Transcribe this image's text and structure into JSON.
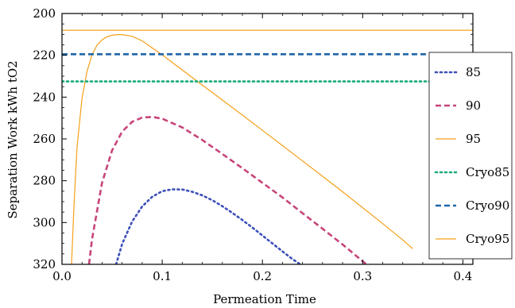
{
  "chart_data": {
    "type": "line",
    "xlabel": "Permeation Time",
    "ylabel": "Separation Work kWh tO2",
    "xlim": [
      0.0,
      0.41
    ],
    "ylim": [
      320,
      200
    ],
    "y_inverted": true,
    "grid": false,
    "legend_position": "right",
    "x_ticks": [
      "0.0",
      "0.1",
      "0.2",
      "0.3",
      "0.4"
    ],
    "y_ticks": [
      "200",
      "220",
      "240",
      "260",
      "280",
      "300",
      "320"
    ],
    "series": [
      {
        "name": "85",
        "color": "#3b4fb8",
        "style": "dotted",
        "x": [
          0.054,
          0.06,
          0.07,
          0.08,
          0.09,
          0.1,
          0.11,
          0.12,
          0.13,
          0.14,
          0.15,
          0.16,
          0.17,
          0.18,
          0.19,
          0.2,
          0.21,
          0.22,
          0.23,
          0.24,
          0.246
        ],
        "y": [
          320,
          310.2,
          299.5,
          292.3,
          287.7,
          285.0,
          284.1,
          284.2,
          285.3,
          287.0,
          289.3,
          292.2,
          295.4,
          298.8,
          302.4,
          306.2,
          310.0,
          313.8,
          317.5,
          320.7,
          322.5
        ]
      },
      {
        "name": "90",
        "color": "#c7457a",
        "style": "dashed",
        "x": [
          0.027,
          0.03,
          0.04,
          0.05,
          0.06,
          0.07,
          0.08,
          0.09,
          0.1,
          0.12,
          0.14,
          0.16,
          0.18,
          0.2,
          0.22,
          0.24,
          0.26,
          0.28,
          0.3,
          0.31
        ],
        "y": [
          320,
          308,
          281,
          265.5,
          256.5,
          251.8,
          249.8,
          249.5,
          250.3,
          254.5,
          260.5,
          267.2,
          274.0,
          281.0,
          288.0,
          295.5,
          303.0,
          310.5,
          318.5,
          322.5
        ]
      },
      {
        "name": "95",
        "color": "#f5a01a",
        "style": "solid",
        "x": [
          0.0095,
          0.012,
          0.015,
          0.02,
          0.025,
          0.03,
          0.035,
          0.04,
          0.045,
          0.05,
          0.055,
          0.06,
          0.07,
          0.08,
          0.1,
          0.12,
          0.14,
          0.16,
          0.18,
          0.2,
          0.22,
          0.24,
          0.26,
          0.28,
          0.3,
          0.32,
          0.34,
          0.35
        ],
        "y": [
          320,
          292,
          264,
          240.6,
          227.7,
          219.7,
          215.1,
          212.6,
          211.1,
          210.4,
          210.1,
          210.1,
          210.9,
          213.1,
          219.8,
          227.0,
          234.2,
          241.4,
          248.6,
          255.9,
          263.2,
          270.5,
          277.9,
          285.3,
          292.9,
          300.5,
          308.3,
          312.5
        ]
      },
      {
        "name": "Cryo85",
        "color": "#1aa97c",
        "style": "dotted",
        "x": [
          0.0,
          0.41
        ],
        "y": [
          232.5,
          232.5
        ]
      },
      {
        "name": "Cryo90",
        "color": "#1f66a8",
        "style": "dashed",
        "x": [
          0.0,
          0.41
        ],
        "y": [
          219.5,
          219.5
        ]
      },
      {
        "name": "Cryo95",
        "color": "#f5a01a",
        "style": "solid",
        "x": [
          0.0,
          0.41
        ],
        "y": [
          208.0,
          208.0
        ]
      }
    ]
  }
}
